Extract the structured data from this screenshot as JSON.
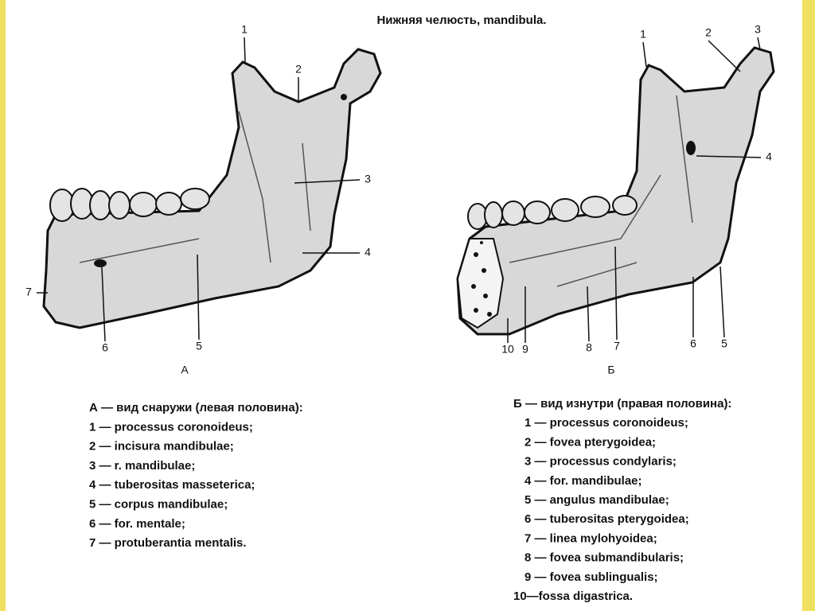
{
  "title": "Нижняя челюсть, mandibula.",
  "figure_a": {
    "label": "А",
    "callouts": [
      "1",
      "2",
      "3",
      "4",
      "5",
      "6",
      "7"
    ]
  },
  "figure_b": {
    "label": "Б",
    "callouts": [
      "1",
      "2",
      "3",
      "4",
      "5",
      "6",
      "7",
      "8",
      "9",
      "10"
    ]
  },
  "legend_a": {
    "heading": "А — вид снаружи  (левая половина):",
    "items": [
      "1 — processus coronoideus;",
      "2 — incisura mandibulae;",
      "3 — r. mandibulae;",
      "4 — tuberositas masseterica;",
      "5 — corpus mandibulae;",
      "6 — for. mentale;",
      "7 — protuberantia mentalis."
    ]
  },
  "legend_b": {
    "heading": "Б — вид изнутри (правая половина):",
    "items": [
      "1 — processus coronoideus;",
      "2 — fovea pterygoidea;",
      "3 — processus condylaris;",
      "4 — for. mandibulae;",
      "5 — angulus mandibulae;",
      "6 — tuberositas pterygoidea;",
      "7 — linea mylohyoidea;",
      "8 — fovea submandibularis;",
      "9 — fovea sublingualis;",
      "10—fossa digastrica."
    ]
  }
}
